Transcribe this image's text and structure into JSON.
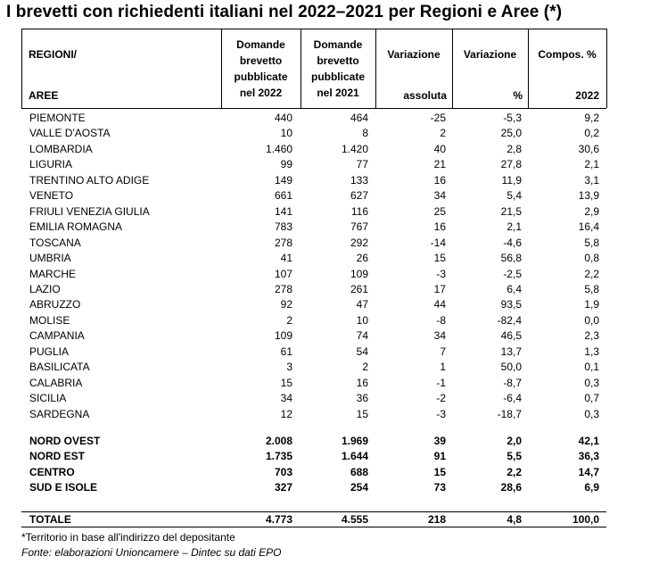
{
  "title": "I brevetti con richiedenti italiani nel 2022–2021 per Regioni e Aree (*)",
  "header": {
    "col1_top": "REGIONI/",
    "col1_bottom": "AREE",
    "col2": [
      "Domande",
      "brevetto",
      "pubblicate",
      "nel 2022"
    ],
    "col3": [
      "Domande",
      "brevetto",
      "pubblicate",
      "nel 2021"
    ],
    "col4_top": "Variazione",
    "col4_bottom": "assoluta",
    "col5_top": "Variazione",
    "col5_bottom": "%",
    "col6_top": "Compos. %",
    "col6_bottom": "2022"
  },
  "regions": [
    {
      "name": "PIEMONTE",
      "d2022": "440",
      "d2021": "464",
      "var_abs": "-25",
      "var_pct": "-5,3",
      "comp": "9,2"
    },
    {
      "name": "VALLE D'AOSTA",
      "d2022": "10",
      "d2021": "8",
      "var_abs": "2",
      "var_pct": "25,0",
      "comp": "0,2"
    },
    {
      "name": "LOMBARDIA",
      "d2022": "1.460",
      "d2021": "1.420",
      "var_abs": "40",
      "var_pct": "2,8",
      "comp": "30,6"
    },
    {
      "name": "LIGURIA",
      "d2022": "99",
      "d2021": "77",
      "var_abs": "21",
      "var_pct": "27,8",
      "comp": "2,1"
    },
    {
      "name": "TRENTINO ALTO ADIGE",
      "d2022": "149",
      "d2021": "133",
      "var_abs": "16",
      "var_pct": "11,9",
      "comp": "3,1"
    },
    {
      "name": "VENETO",
      "d2022": "661",
      "d2021": "627",
      "var_abs": "34",
      "var_pct": "5,4",
      "comp": "13,9"
    },
    {
      "name": "FRIULI VENEZIA GIULIA",
      "d2022": "141",
      "d2021": "116",
      "var_abs": "25",
      "var_pct": "21,5",
      "comp": "2,9"
    },
    {
      "name": "EMILIA ROMAGNA",
      "d2022": "783",
      "d2021": "767",
      "var_abs": "16",
      "var_pct": "2,1",
      "comp": "16,4"
    },
    {
      "name": "TOSCANA",
      "d2022": "278",
      "d2021": "292",
      "var_abs": "-14",
      "var_pct": "-4,6",
      "comp": "5,8"
    },
    {
      "name": "UMBRIA",
      "d2022": "41",
      "d2021": "26",
      "var_abs": "15",
      "var_pct": "56,8",
      "comp": "0,8"
    },
    {
      "name": "MARCHE",
      "d2022": "107",
      "d2021": "109",
      "var_abs": "-3",
      "var_pct": "-2,5",
      "comp": "2,2"
    },
    {
      "name": "LAZIO",
      "d2022": "278",
      "d2021": "261",
      "var_abs": "17",
      "var_pct": "6,4",
      "comp": "5,8"
    },
    {
      "name": "ABRUZZO",
      "d2022": "92",
      "d2021": "47",
      "var_abs": "44",
      "var_pct": "93,5",
      "comp": "1,9"
    },
    {
      "name": "MOLISE",
      "d2022": "2",
      "d2021": "10",
      "var_abs": "-8",
      "var_pct": "-82,4",
      "comp": "0,0"
    },
    {
      "name": "CAMPANIA",
      "d2022": "109",
      "d2021": "74",
      "var_abs": "34",
      "var_pct": "46,5",
      "comp": "2,3"
    },
    {
      "name": "PUGLIA",
      "d2022": "61",
      "d2021": "54",
      "var_abs": "7",
      "var_pct": "13,7",
      "comp": "1,3"
    },
    {
      "name": "BASILICATA",
      "d2022": "3",
      "d2021": "2",
      "var_abs": "1",
      "var_pct": "50,0",
      "comp": "0,1"
    },
    {
      "name": "CALABRIA",
      "d2022": "15",
      "d2021": "16",
      "var_abs": "-1",
      "var_pct": "-8,7",
      "comp": "0,3"
    },
    {
      "name": "SICILIA",
      "d2022": "34",
      "d2021": "36",
      "var_abs": "-2",
      "var_pct": "-6,4",
      "comp": "0,7"
    },
    {
      "name": "SARDEGNA",
      "d2022": "12",
      "d2021": "15",
      "var_abs": "-3",
      "var_pct": "-18,7",
      "comp": "0,3"
    }
  ],
  "areas": [
    {
      "name": "NORD OVEST",
      "d2022": "2.008",
      "d2021": "1.969",
      "var_abs": "39",
      "var_pct": "2,0",
      "comp": "42,1"
    },
    {
      "name": "NORD EST",
      "d2022": "1.735",
      "d2021": "1.644",
      "var_abs": "91",
      "var_pct": "5,5",
      "comp": "36,3"
    },
    {
      "name": "CENTRO",
      "d2022": "703",
      "d2021": "688",
      "var_abs": "15",
      "var_pct": "2,2",
      "comp": "14,7"
    },
    {
      "name": "SUD E ISOLE",
      "d2022": "327",
      "d2021": "254",
      "var_abs": "73",
      "var_pct": "28,6",
      "comp": "6,9"
    }
  ],
  "total": {
    "name": "TOTALE",
    "d2022": "4.773",
    "d2021": "4.555",
    "var_abs": "218",
    "var_pct": "4,8",
    "comp": "100,0"
  },
  "footnote": "*Territorio in base all'indirizzo del depositante",
  "source": "Fonte: elaborazioni Unioncamere –  Dintec su dati EPO"
}
